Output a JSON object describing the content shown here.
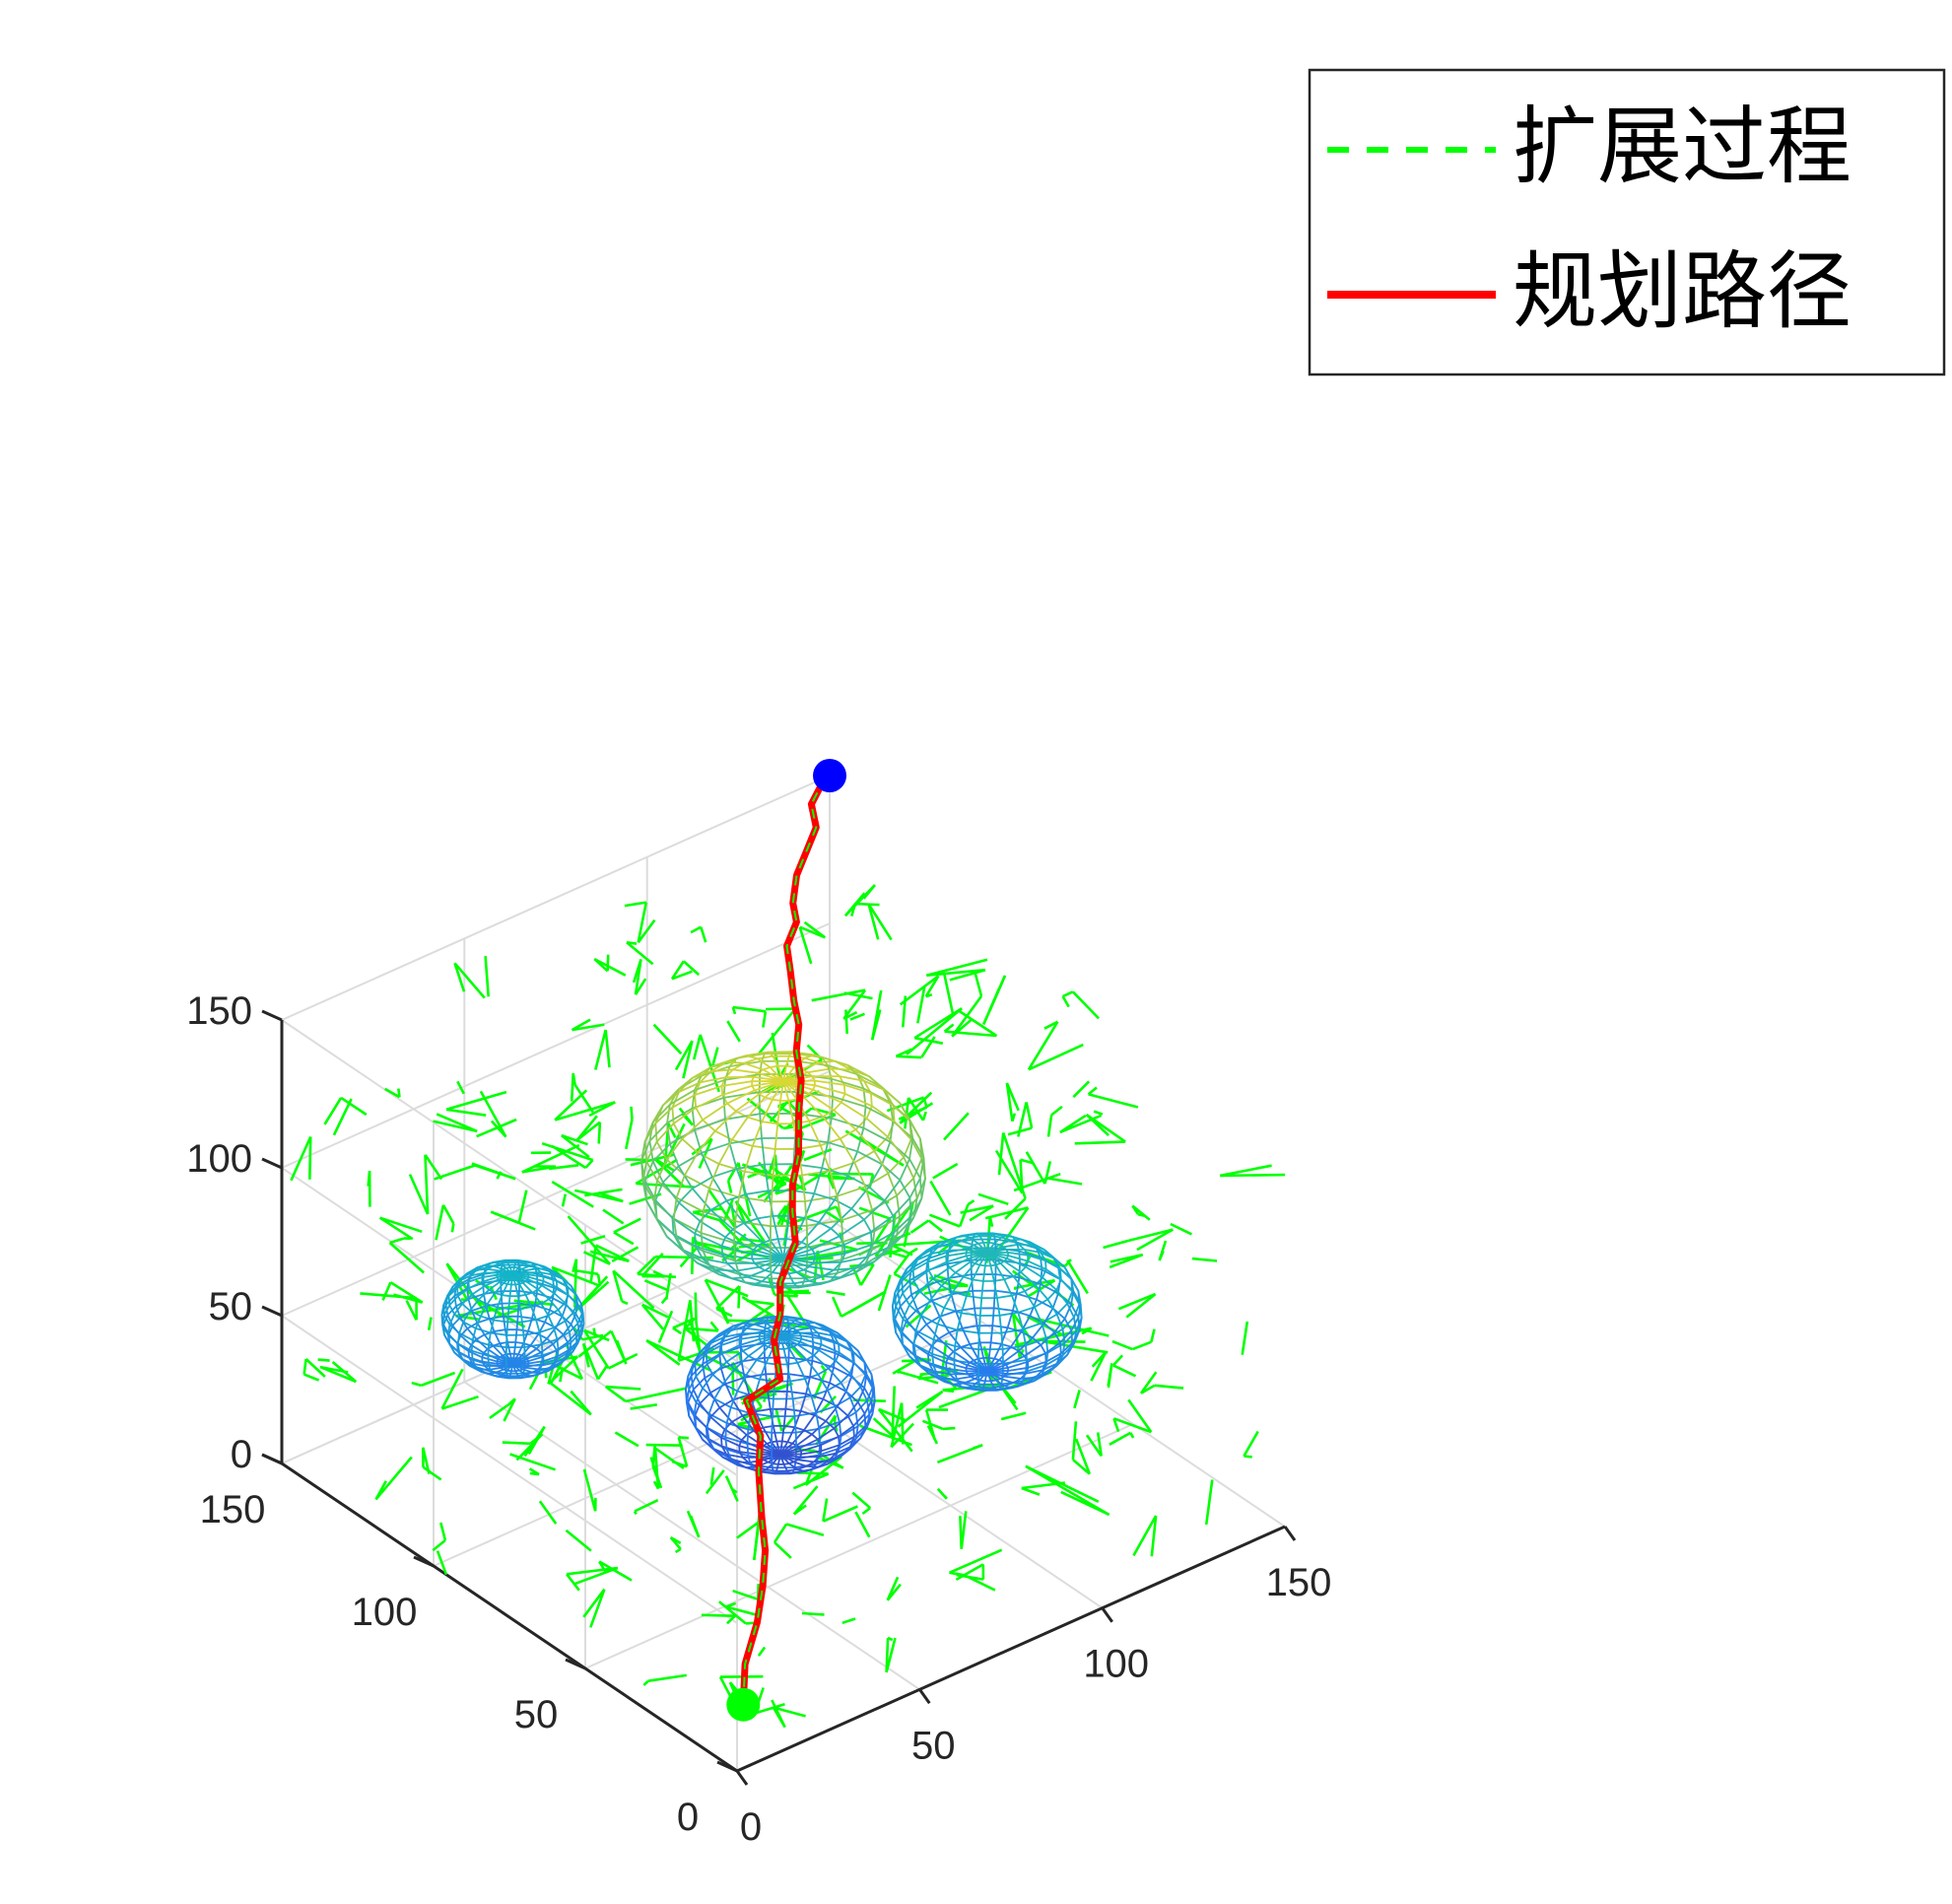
{
  "chart_data": {
    "type": "scatter",
    "title": "",
    "xlabel": "",
    "ylabel": "",
    "zlabel": "",
    "xlim": [
      0,
      150
    ],
    "ylim": [
      0,
      150
    ],
    "zlim": [
      0,
      150
    ],
    "x_ticks": [
      "0",
      "50",
      "100",
      "150"
    ],
    "y_ticks": [
      "0",
      "50",
      "100",
      "150"
    ],
    "z_ticks": [
      "0",
      "50",
      "100",
      "150"
    ],
    "grid": true,
    "view": "3d-isometric",
    "legend": {
      "placement": "top-right",
      "entries": [
        {
          "label": "扩展过程",
          "color": "#00ff00",
          "style": "dashed"
        },
        {
          "label": "规划路径",
          "color": "#ff0000",
          "style": "solid"
        }
      ]
    },
    "obstacles": [
      {
        "center": [
          70,
          70,
          40
        ],
        "radius": 20,
        "colormap": "parula"
      },
      {
        "center": [
          110,
          50,
          60
        ],
        "radius": 20,
        "colormap": "parula"
      },
      {
        "center": [
          30,
          110,
          60
        ],
        "radius": 15,
        "colormap": "parula"
      },
      {
        "center": [
          75,
          75,
          110
        ],
        "radius": 30,
        "colormap": "parula"
      }
    ],
    "start": {
      "point": [
        10,
        10,
        10
      ],
      "color": "#00ff00"
    },
    "goal": {
      "point": [
        150,
        150,
        150
      ],
      "color": "#0000ff"
    },
    "path": [
      [
        10,
        10,
        10
      ],
      [
        13,
        13,
        20
      ],
      [
        18,
        15,
        30
      ],
      [
        22,
        18,
        38
      ],
      [
        26,
        22,
        45
      ],
      [
        30,
        28,
        50
      ],
      [
        35,
        35,
        58
      ],
      [
        38,
        38,
        66
      ],
      [
        40,
        45,
        72
      ],
      [
        45,
        40,
        80
      ],
      [
        50,
        48,
        85
      ],
      [
        55,
        52,
        88
      ],
      [
        60,
        58,
        92
      ],
      [
        70,
        65,
        95
      ],
      [
        75,
        72,
        98
      ],
      [
        80,
        78,
        100
      ],
      [
        85,
        82,
        105
      ],
      [
        90,
        88,
        112
      ],
      [
        94,
        92,
        118
      ],
      [
        96,
        96,
        124
      ],
      [
        100,
        100,
        128
      ],
      [
        102,
        104,
        132
      ],
      [
        106,
        110,
        136
      ],
      [
        110,
        116,
        138
      ],
      [
        116,
        120,
        140
      ],
      [
        120,
        126,
        140
      ],
      [
        126,
        132,
        142
      ],
      [
        132,
        136,
        144
      ],
      [
        138,
        140,
        146
      ],
      [
        140,
        144,
        150
      ],
      [
        144,
        146,
        152
      ],
      [
        150,
        150,
        150
      ]
    ],
    "path_color": "#ff0000",
    "tree_color": "#00ff00",
    "tree_style": "dashed"
  }
}
